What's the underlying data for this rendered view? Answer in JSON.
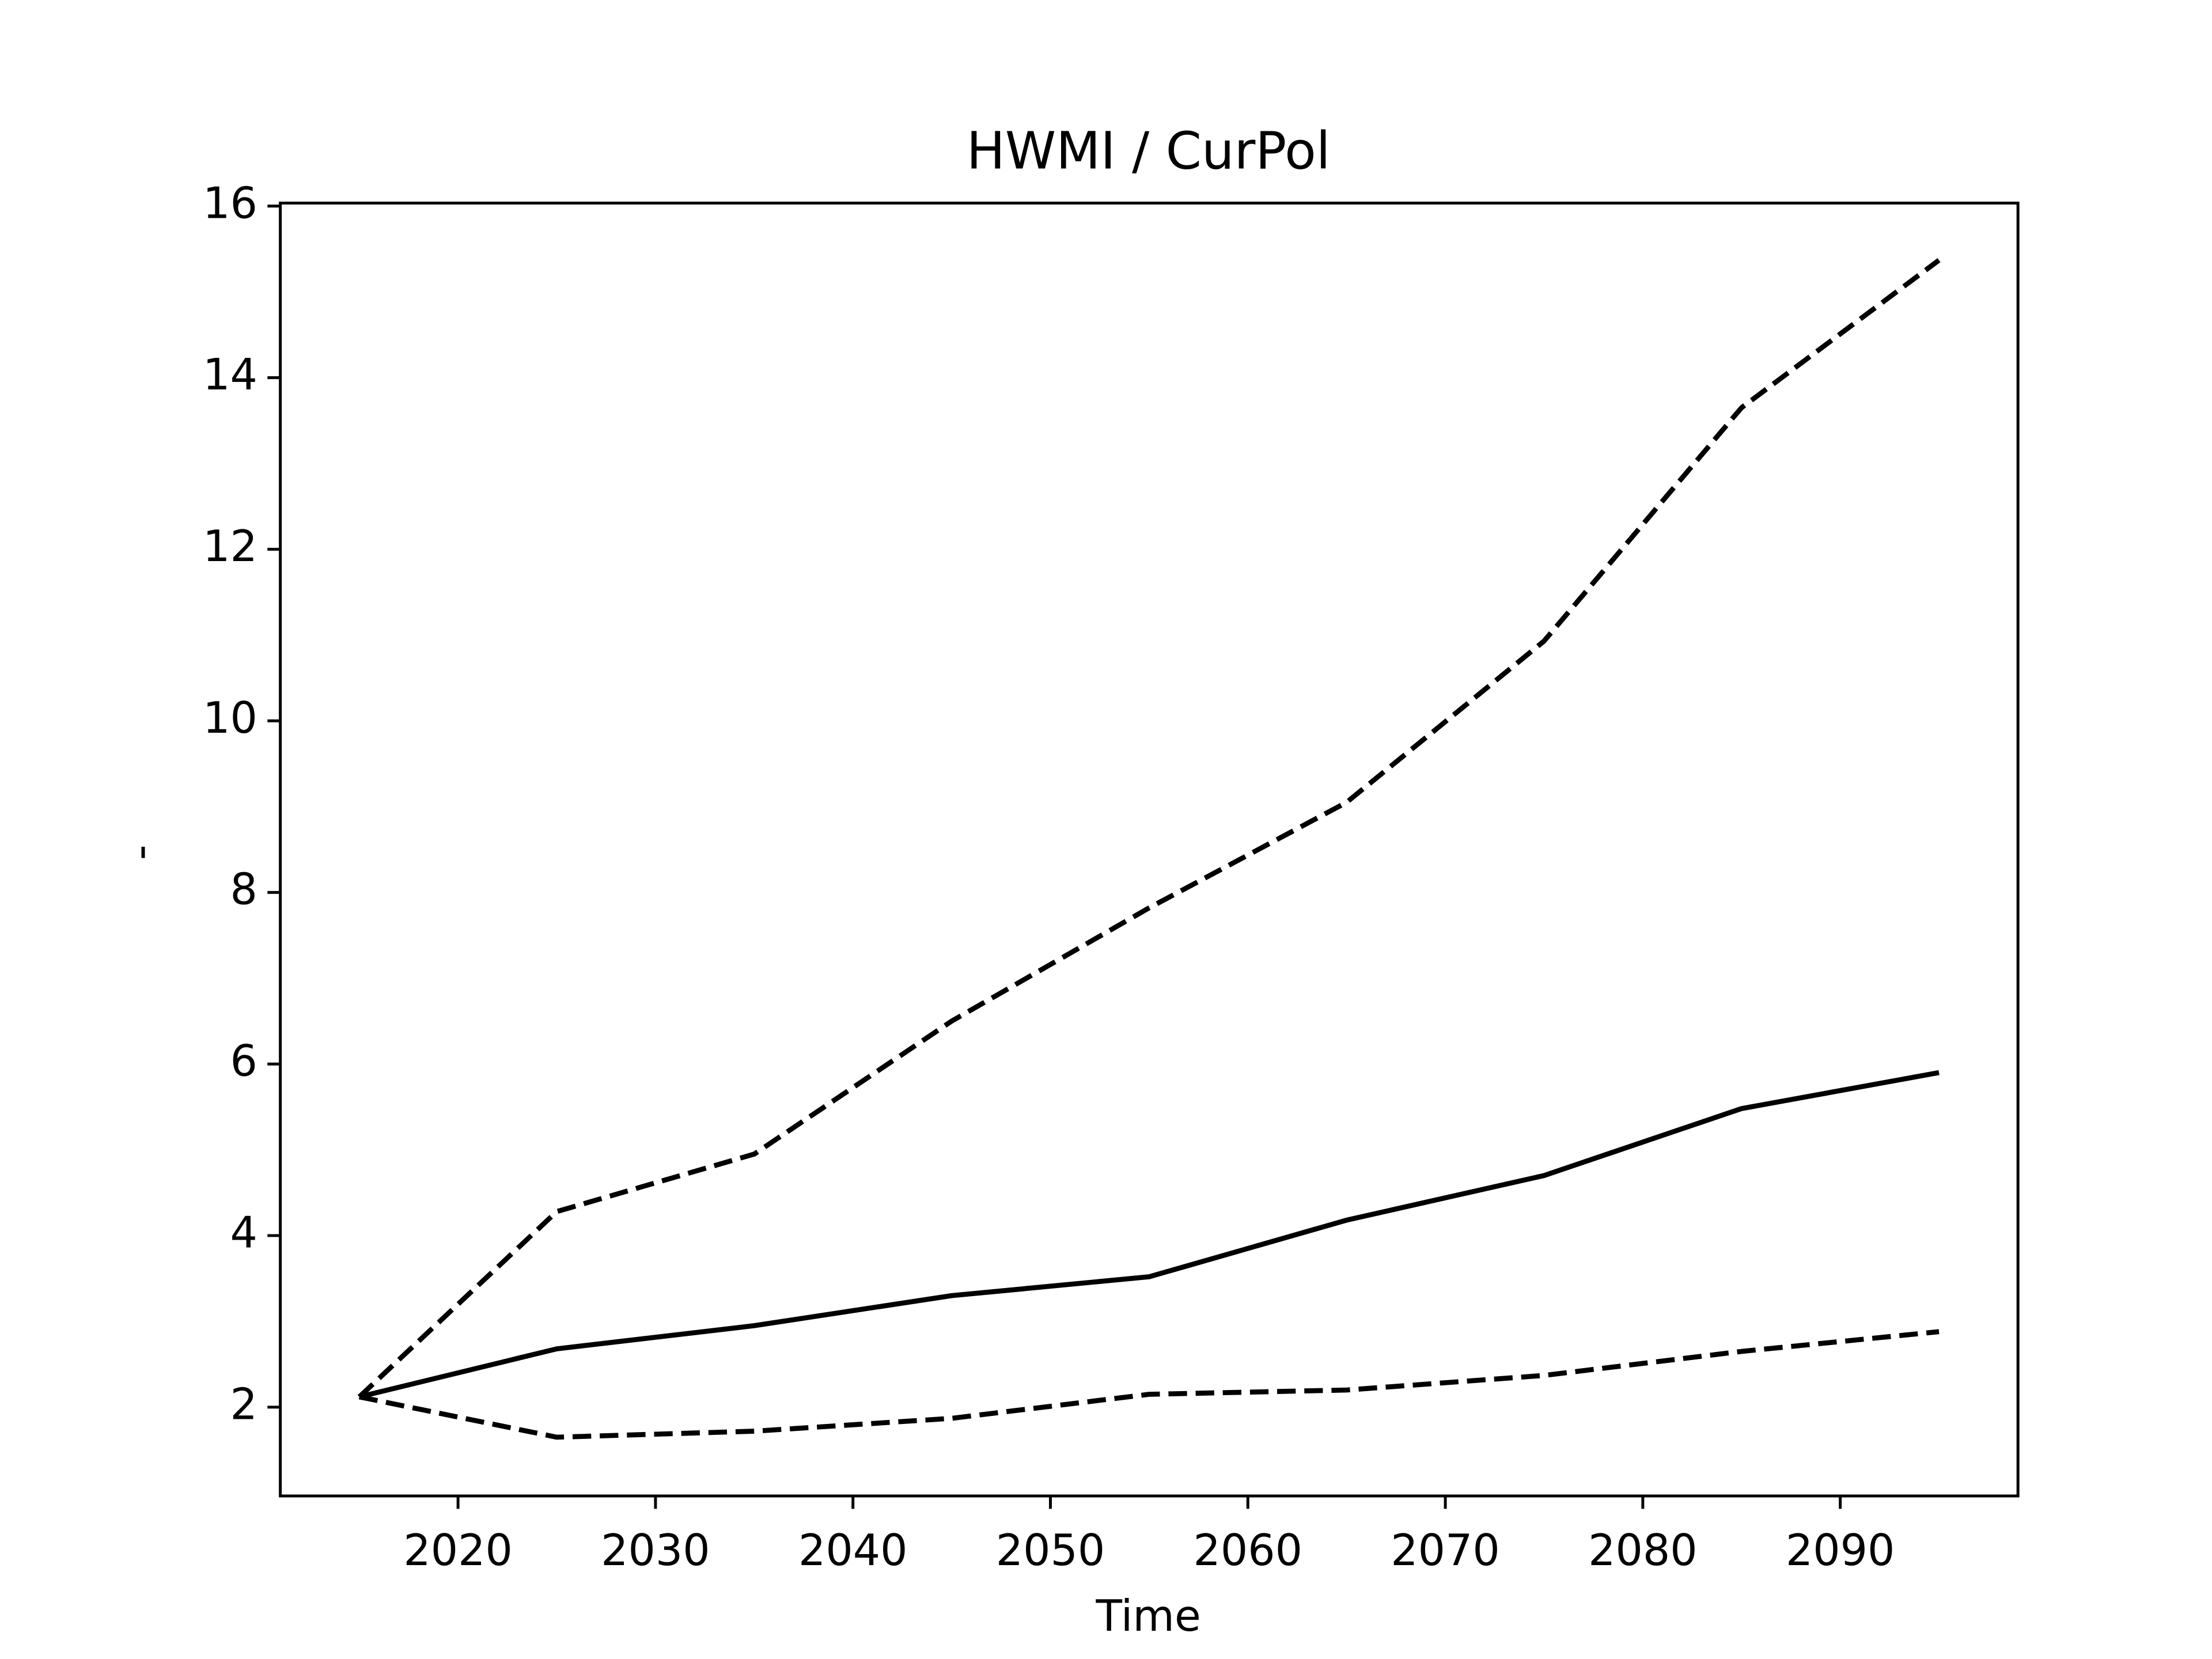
{
  "chart_data": {
    "type": "line",
    "title": "HWMI / CurPol",
    "x_label": "Time",
    "y_label": "-",
    "x": [
      2015,
      2025,
      2035,
      2045,
      2055,
      2065,
      2075,
      2085,
      2095
    ],
    "series": [
      {
        "color": "#000000",
        "style": "solid",
        "values": [
          2.12,
          2.68,
          2.95,
          3.3,
          3.52,
          4.18,
          4.7,
          5.48,
          5.9
        ]
      },
      {
        "color": "#000000",
        "style": "dashed",
        "values": [
          2.12,
          4.28,
          4.95,
          6.5,
          7.82,
          9.05,
          10.93,
          13.65,
          15.37
        ]
      },
      {
        "color": "#000000",
        "style": "dashed",
        "values": [
          2.12,
          1.65,
          1.72,
          1.87,
          2.15,
          2.2,
          2.37,
          2.65,
          2.88
        ]
      }
    ],
    "xlim": [
      2011,
      2099
    ],
    "xticks": [
      2020,
      2030,
      2040,
      2050,
      2060,
      2070,
      2080,
      2090
    ],
    "ylim": [
      0.965,
      16.035
    ],
    "yticks": [
      2,
      4,
      6,
      8,
      10,
      12,
      14,
      16
    ],
    "grid": false
  }
}
